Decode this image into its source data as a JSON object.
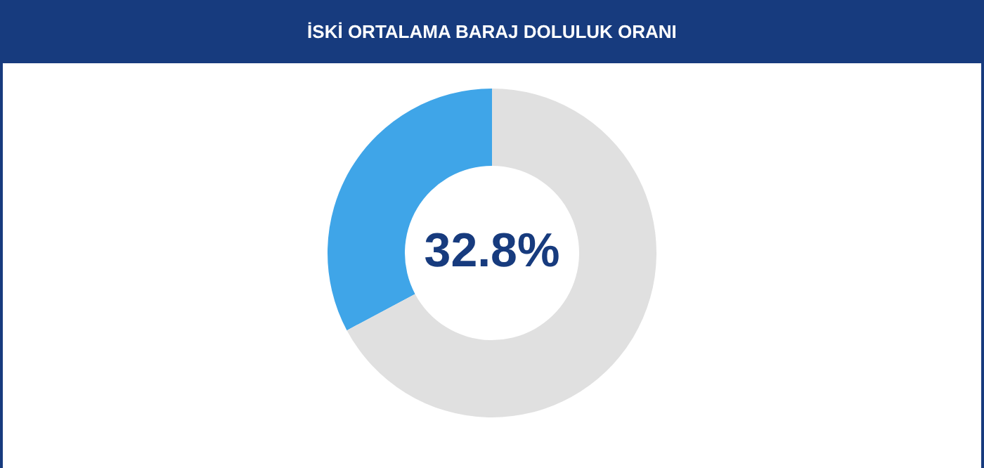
{
  "chart_data": {
    "type": "donut",
    "title": "İSKİ ORTALAMA BARAJ DOLULUK ORANI",
    "categories": [
      null,
      null
    ],
    "values": [
      32.8,
      67.2
    ],
    "colors": [
      "#3fa5e8",
      "#e0e0e0"
    ],
    "value_labels": [
      "32.8%",
      null
    ],
    "legend": false
  }
}
